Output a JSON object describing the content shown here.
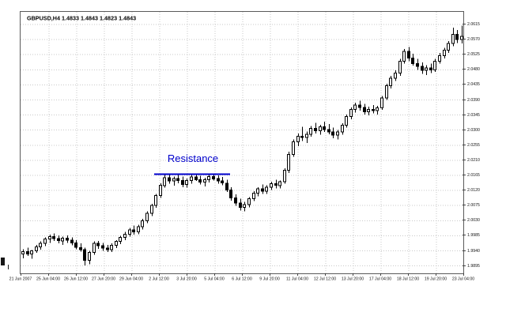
{
  "chart_data": {
    "type": "candlestick",
    "symbol": "GBPUSD",
    "timeframe": "H4",
    "title": "GBPUSD,H4 1.4833 1.4843 1.4823 1.4843",
    "grid": true,
    "legend_position": "none",
    "colors": {
      "up": "#ffffff",
      "down": "#000000",
      "outline": "#000000",
      "grid": "#c9c9c9",
      "annotation": "#0000cc",
      "axis_text": "#111111",
      "border": "#5a5a5a",
      "background": "#ffffff"
    },
    "y_axis": {
      "min": 1.9895,
      "max": 2.0615,
      "step": 0.0045
    },
    "y_tick_labels": [
      "2.0615",
      "2.0570",
      "2.0525",
      "2.0480",
      "2.0435",
      "2.0390",
      "2.0345",
      "2.0300",
      "2.0255",
      "2.0210",
      "2.0165",
      "2.0120",
      "2.0075",
      "2.0030",
      "1.9985",
      "1.9940",
      "1.9895"
    ],
    "x_tick_labels": [
      "21 Jun 2007",
      "25 Jun 04:00",
      "26 Jun 12:00",
      "27 Jun 20:00",
      "29 Jun 04:00",
      "2 Jul 12:00",
      "3 Jul 20:00",
      "5 Jul 04:00",
      "6 Jul 12:00",
      "9 Jul 20:00",
      "11 Jul 04:00",
      "12 Jul 12:00",
      "13 Jul 20:00",
      "17 Jul 04:00",
      "18 Jul 12:00",
      "19 Jul 20:00",
      "23 Jul 04:00"
    ],
    "resistance": {
      "label": "Resistance",
      "price": 2.0168,
      "start_index": 30,
      "end_index": 46,
      "color": "#0000cc"
    },
    "candles": [
      [
        1.993,
        1.9945,
        1.9918,
        1.9938
      ],
      [
        1.9938,
        1.995,
        1.9925,
        1.993
      ],
      [
        1.993,
        1.9942,
        1.9916,
        1.994
      ],
      [
        1.994,
        1.9958,
        1.9934,
        1.9952
      ],
      [
        1.9952,
        1.9968,
        1.9944,
        1.9962
      ],
      [
        1.9962,
        1.998,
        1.9954,
        1.9975
      ],
      [
        1.9975,
        1.9988,
        1.9964,
        1.9982
      ],
      [
        1.9982,
        1.9992,
        1.997,
        1.9976
      ],
      [
        1.9976,
        1.9986,
        1.9962,
        1.997
      ],
      [
        1.997,
        1.9982,
        1.9958,
        1.9978
      ],
      [
        1.9978,
        1.9986,
        1.9964,
        1.9972
      ],
      [
        1.9972,
        1.998,
        1.9956,
        1.9964
      ],
      [
        1.9964,
        1.9972,
        1.9945,
        1.995
      ],
      [
        1.995,
        1.9962,
        1.9938,
        1.9944
      ],
      [
        1.9944,
        1.995,
        1.9897,
        1.9912
      ],
      [
        1.9912,
        1.994,
        1.99,
        1.9935
      ],
      [
        1.9935,
        1.9968,
        1.9928,
        1.9962
      ],
      [
        1.9962,
        1.997,
        1.9946,
        1.9955
      ],
      [
        1.9955,
        1.9964,
        1.994,
        1.9948
      ],
      [
        1.9948,
        1.9958,
        1.9936,
        1.9944
      ],
      [
        1.9944,
        1.9962,
        1.9936,
        1.9956
      ],
      [
        1.9956,
        1.9972,
        1.9948,
        1.9968
      ],
      [
        1.9968,
        1.9985,
        1.996,
        1.998
      ],
      [
        1.998,
        1.9996,
        1.9972,
        1.999
      ],
      [
        1.999,
        2.0008,
        1.9982,
        2.0002
      ],
      [
        2.0002,
        2.0015,
        1.9988,
        1.9996
      ],
      [
        1.9996,
        2.0018,
        1.999,
        2.0012
      ],
      [
        2.0012,
        2.0036,
        2.0004,
        2.003
      ],
      [
        2.003,
        2.0058,
        2.0022,
        2.0052
      ],
      [
        2.0052,
        2.008,
        2.0044,
        2.0075
      ],
      [
        2.0075,
        2.011,
        2.0068,
        2.0105
      ],
      [
        2.0105,
        2.0142,
        2.0098,
        2.0135
      ],
      [
        2.0135,
        2.0166,
        2.0128,
        2.0158
      ],
      [
        2.0158,
        2.0168,
        2.014,
        2.0148
      ],
      [
        2.0148,
        2.0162,
        2.0134,
        2.0155
      ],
      [
        2.0155,
        2.0167,
        2.0142,
        2.015
      ],
      [
        2.015,
        2.0162,
        2.013,
        2.0138
      ],
      [
        2.0138,
        2.0156,
        2.0128,
        2.015
      ],
      [
        2.015,
        2.0168,
        2.014,
        2.016
      ],
      [
        2.016,
        2.017,
        2.0148,
        2.0152
      ],
      [
        2.0152,
        2.0164,
        2.0138,
        2.0145
      ],
      [
        2.0145,
        2.0158,
        2.0132,
        2.0152
      ],
      [
        2.0152,
        2.0169,
        2.0144,
        2.0162
      ],
      [
        2.0162,
        2.017,
        2.015,
        2.0155
      ],
      [
        2.0155,
        2.0165,
        2.014,
        2.0148
      ],
      [
        2.0148,
        2.016,
        2.0136,
        2.0142
      ],
      [
        2.0142,
        2.0152,
        2.0116,
        2.0122
      ],
      [
        2.0122,
        2.013,
        2.009,
        2.0098
      ],
      [
        2.0098,
        2.0108,
        2.0074,
        2.0082
      ],
      [
        2.0082,
        2.0095,
        2.006,
        2.007
      ],
      [
        2.007,
        2.0086,
        2.0058,
        2.0078
      ],
      [
        2.0078,
        2.01,
        2.007,
        2.0095
      ],
      [
        2.0095,
        2.0118,
        2.0088,
        2.0112
      ],
      [
        2.0112,
        2.013,
        2.0102,
        2.0125
      ],
      [
        2.0125,
        2.0138,
        2.011,
        2.0118
      ],
      [
        2.0118,
        2.0136,
        2.011,
        2.013
      ],
      [
        2.013,
        2.0146,
        2.0122,
        2.014
      ],
      [
        2.014,
        2.0152,
        2.0126,
        2.0135
      ],
      [
        2.0135,
        2.015,
        2.0126,
        2.0146
      ],
      [
        2.0146,
        2.0186,
        2.014,
        2.018
      ],
      [
        2.018,
        2.0236,
        2.0172,
        2.0228
      ],
      [
        2.0228,
        2.0272,
        2.022,
        2.0265
      ],
      [
        2.0265,
        2.029,
        2.0252,
        2.0282
      ],
      [
        2.0282,
        2.031,
        2.0268,
        2.0278
      ],
      [
        2.0278,
        2.0296,
        2.0262,
        2.0288
      ],
      [
        2.0288,
        2.0312,
        2.028,
        2.0305
      ],
      [
        2.0305,
        2.0322,
        2.029,
        2.0298
      ],
      [
        2.0298,
        2.0316,
        2.0286,
        2.031
      ],
      [
        2.031,
        2.0325,
        2.0294,
        2.0302
      ],
      [
        2.0302,
        2.0318,
        2.0288,
        2.0295
      ],
      [
        2.0295,
        2.0308,
        2.0276,
        2.0285
      ],
      [
        2.0285,
        2.03,
        2.0272,
        2.0294
      ],
      [
        2.0294,
        2.032,
        2.0286,
        2.0315
      ],
      [
        2.0315,
        2.0346,
        2.0308,
        2.034
      ],
      [
        2.034,
        2.0368,
        2.0332,
        2.0362
      ],
      [
        2.0362,
        2.0382,
        2.0352,
        2.0375
      ],
      [
        2.0375,
        2.0388,
        2.0358,
        2.0368
      ],
      [
        2.0368,
        2.0378,
        2.0346,
        2.0355
      ],
      [
        2.0355,
        2.037,
        2.0344,
        2.0362
      ],
      [
        2.0362,
        2.0375,
        2.035,
        2.0358
      ],
      [
        2.0358,
        2.0372,
        2.0346,
        2.0366
      ],
      [
        2.0366,
        2.0402,
        2.036,
        2.0396
      ],
      [
        2.0396,
        2.0438,
        2.039,
        2.0432
      ],
      [
        2.0432,
        2.0462,
        2.0424,
        2.0455
      ],
      [
        2.0455,
        2.0478,
        2.0446,
        2.047
      ],
      [
        2.047,
        2.0512,
        2.0462,
        2.0505
      ],
      [
        2.0505,
        2.0542,
        2.0498,
        2.0535
      ],
      [
        2.0535,
        2.0548,
        2.0506,
        2.0515
      ],
      [
        2.0515,
        2.0528,
        2.0492,
        2.0498
      ],
      [
        2.0498,
        2.0512,
        2.048,
        2.049
      ],
      [
        2.049,
        2.0502,
        2.0468,
        2.0478
      ],
      [
        2.0478,
        2.0494,
        2.0464,
        2.0485
      ],
      [
        2.0485,
        2.0498,
        2.047,
        2.048
      ],
      [
        2.048,
        2.0512,
        2.0474,
        2.0505
      ],
      [
        2.0505,
        2.053,
        2.0498,
        2.0522
      ],
      [
        2.0522,
        2.0546,
        2.0514,
        2.0538
      ],
      [
        2.0538,
        2.0566,
        2.053,
        2.0558
      ],
      [
        2.0558,
        2.0605,
        2.055,
        2.0585
      ],
      [
        2.0585,
        2.0598,
        2.056,
        2.057
      ],
      [
        2.057,
        2.0612,
        2.0558,
        2.058
      ]
    ]
  }
}
